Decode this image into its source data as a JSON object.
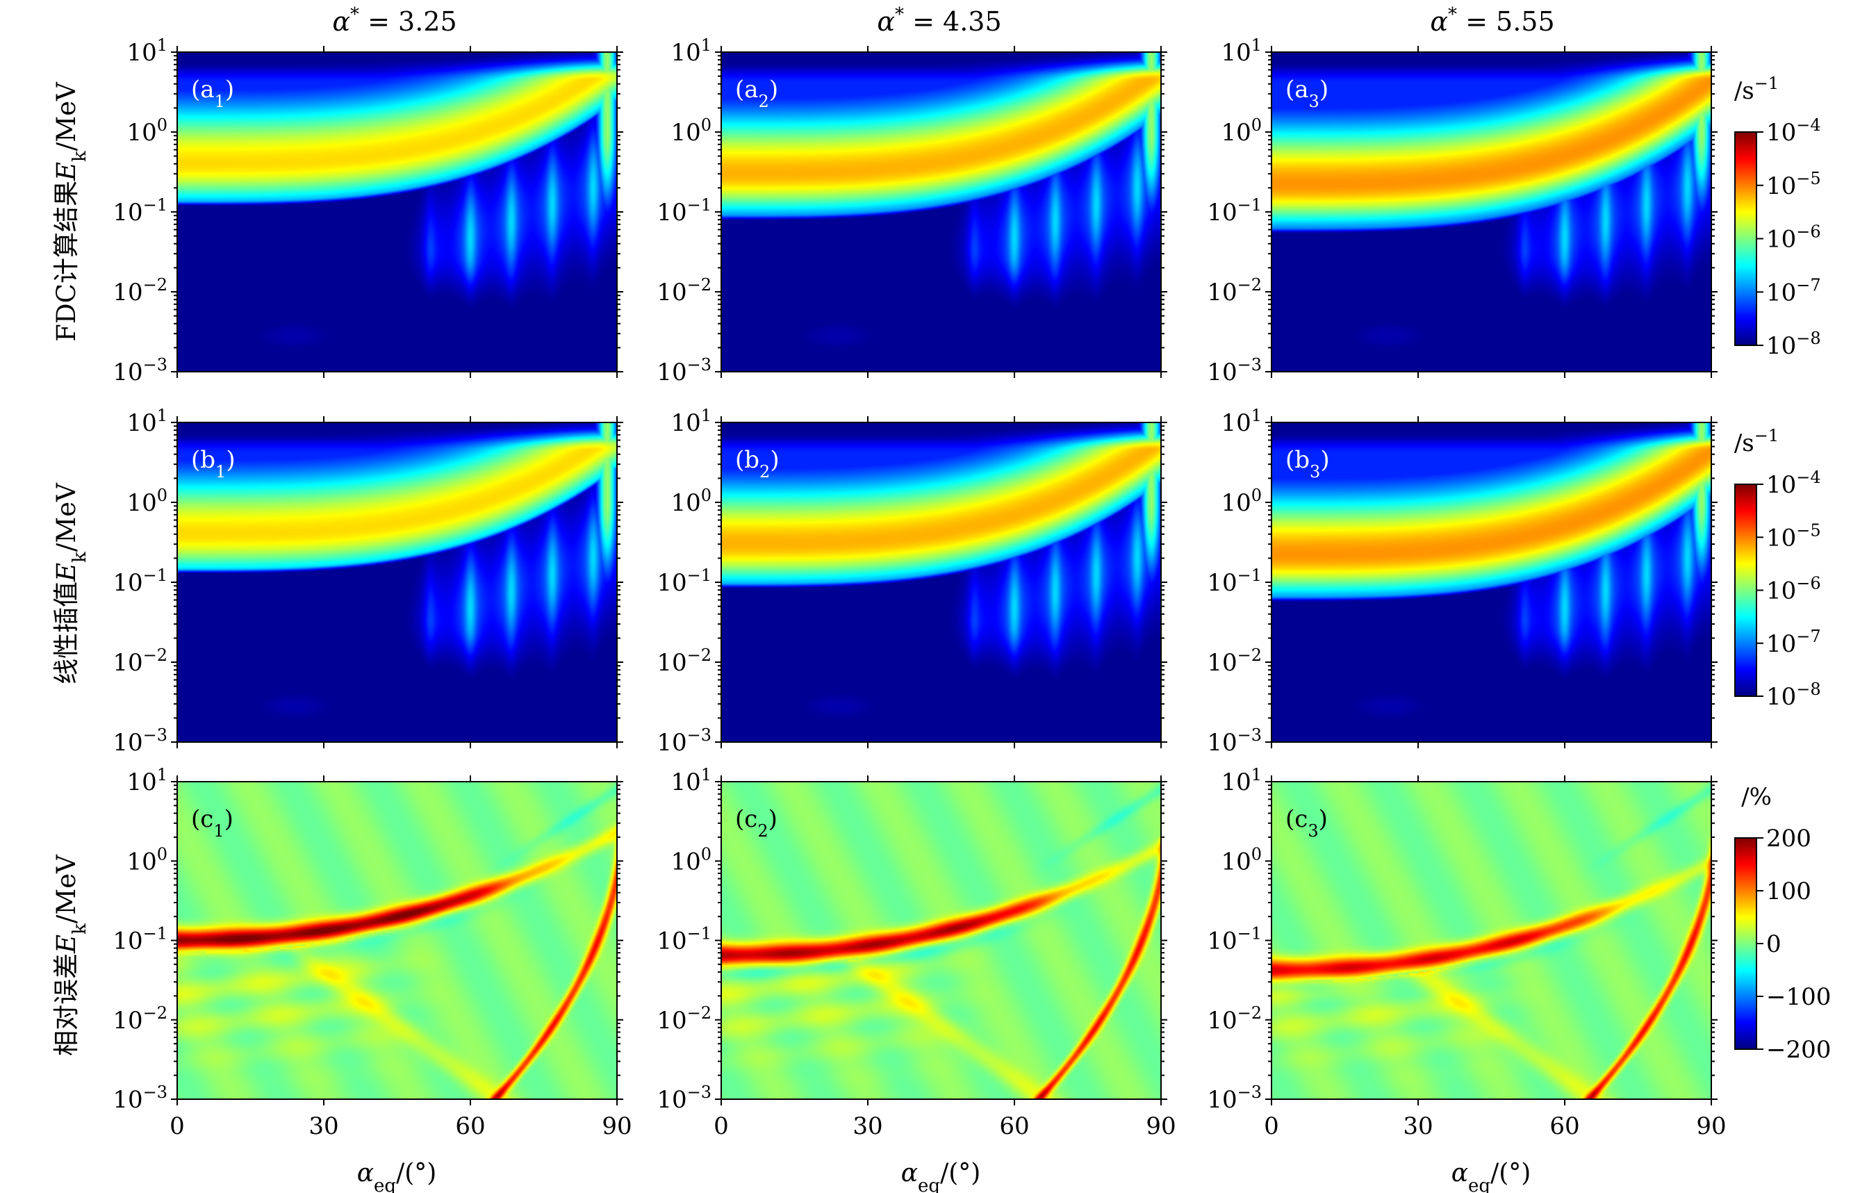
{
  "figure": {
    "column_titles": [
      "α* = 3.25",
      "α* = 4.35",
      "α* = 5.55"
    ],
    "row_labels": [
      "FDC计算结果E_k/MeV",
      "线性插值E_k/MeV",
      "相对误差E_k/MeV"
    ],
    "x_axis_label": "α_eq/(°)",
    "x_ticks": [
      "0",
      "30",
      "60",
      "90"
    ],
    "y_ticks": [
      "10^1",
      "10^0",
      "10^-1",
      "10^-2",
      "10^-3"
    ],
    "panel_labels": [
      [
        "(a1)",
        "(a2)",
        "(a3)"
      ],
      [
        "(b1)",
        "(b2)",
        "(b3)"
      ],
      [
        "(c1)",
        "(c2)",
        "(c3)"
      ]
    ],
    "colorbars": [
      {
        "unit": "/s^-1",
        "ticks": [
          "10^-4",
          "10^-5",
          "10^-6",
          "10^-7",
          "10^-8"
        ]
      },
      {
        "unit": "/s^-1",
        "ticks": [
          "10^-4",
          "10^-5",
          "10^-6",
          "10^-7",
          "10^-8"
        ]
      },
      {
        "unit": "/%",
        "ticks": [
          "200",
          "100",
          "0",
          "−100",
          "−200"
        ]
      }
    ],
    "colormap": [
      "#00007f",
      "#0000ff",
      "#007fff",
      "#00ffff",
      "#7fff7f",
      "#ffff00",
      "#ff7f00",
      "#ff0000",
      "#7f0000"
    ]
  },
  "chart_data": {
    "type": "heatmap",
    "title": "",
    "xlabel": "α_eq/(°)",
    "xlim": [
      0,
      90
    ],
    "ylim": [
      0.001,
      10
    ],
    "y_scale": "log",
    "panels": [
      {
        "label": "(a1)",
        "alpha_star": 3.25,
        "quantity": "FDC",
        "colorbar_range": [
          1e-08,
          0.0001
        ],
        "colorbar_scale": "log",
        "band_lower_edge_at_0deg_MeV": 0.12,
        "band_peak_at_0deg_MeV": 0.4,
        "band_peak_color_level": 0.66
      },
      {
        "label": "(a2)",
        "alpha_star": 4.35,
        "quantity": "FDC",
        "colorbar_range": [
          1e-08,
          0.0001
        ],
        "colorbar_scale": "log",
        "band_lower_edge_at_0deg_MeV": 0.08,
        "band_peak_at_0deg_MeV": 0.3,
        "band_peak_color_level": 0.7
      },
      {
        "label": "(a3)",
        "alpha_star": 5.55,
        "quantity": "FDC",
        "colorbar_range": [
          1e-08,
          0.0001
        ],
        "colorbar_scale": "log",
        "band_lower_edge_at_0deg_MeV": 0.055,
        "band_peak_at_0deg_MeV": 0.22,
        "band_peak_color_level": 0.73
      },
      {
        "label": "(b1)",
        "alpha_star": 3.25,
        "quantity": "linear interpolation",
        "colorbar_range": [
          1e-08,
          0.0001
        ],
        "colorbar_scale": "log",
        "band_lower_edge_at_0deg_MeV": 0.13,
        "band_peak_at_0deg_MeV": 0.4,
        "band_peak_color_level": 0.66
      },
      {
        "label": "(b2)",
        "alpha_star": 4.35,
        "quantity": "linear interpolation",
        "colorbar_range": [
          1e-08,
          0.0001
        ],
        "colorbar_scale": "log",
        "band_lower_edge_at_0deg_MeV": 0.085,
        "band_peak_at_0deg_MeV": 0.3,
        "band_peak_color_level": 0.7
      },
      {
        "label": "(b3)",
        "alpha_star": 5.55,
        "quantity": "linear interpolation",
        "colorbar_range": [
          1e-08,
          0.0001
        ],
        "colorbar_scale": "log",
        "band_lower_edge_at_0deg_MeV": 0.058,
        "band_peak_at_0deg_MeV": 0.22,
        "band_peak_color_level": 0.73
      },
      {
        "label": "(c1)",
        "alpha_star": 3.25,
        "quantity": "relative error (%)",
        "colorbar_range": [
          -200,
          200
        ],
        "colorbar_scale": "linear",
        "error_ridge_at_0deg_MeV": 0.1,
        "error_ridge_max_percent": 200
      },
      {
        "label": "(c2)",
        "alpha_star": 4.35,
        "quantity": "relative error (%)",
        "colorbar_range": [
          -200,
          200
        ],
        "colorbar_scale": "linear",
        "error_ridge_at_0deg_MeV": 0.065,
        "error_ridge_max_percent": 180
      },
      {
        "label": "(c3)",
        "alpha_star": 5.55,
        "quantity": "relative error (%)",
        "colorbar_range": [
          -200,
          200
        ],
        "colorbar_scale": "linear",
        "error_ridge_at_0deg_MeV": 0.042,
        "error_ridge_max_percent": 160
      }
    ]
  }
}
